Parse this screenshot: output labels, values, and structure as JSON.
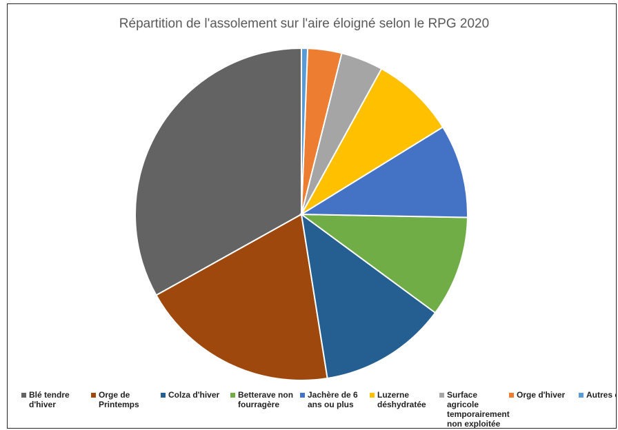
{
  "chart_data": {
    "type": "pie",
    "title": "Répartition de l'assolement sur l'aire éloigné selon le RPG 2020",
    "categories": [
      "Blé tendre d'hiver",
      "Orge de Printemps",
      "Colza d'hiver",
      "Betterave non fourragère",
      "Jachère de 6 ans ou plus",
      "Luzerne déshydratée",
      "Surface agricole temporairement non exploitée",
      "Orge d'hiver",
      "Autres cultures"
    ],
    "values": [
      33.1,
      19.4,
      12.4,
      9.8,
      9.1,
      8.2,
      4.1,
      3.3,
      0.6
    ],
    "colors": [
      "#636363",
      "#9e480e",
      "#255e91",
      "#70ad47",
      "#4472c4",
      "#ffc000",
      "#a5a5a5",
      "#ed7d31",
      "#5b9bd5"
    ],
    "legend": "bottom"
  }
}
